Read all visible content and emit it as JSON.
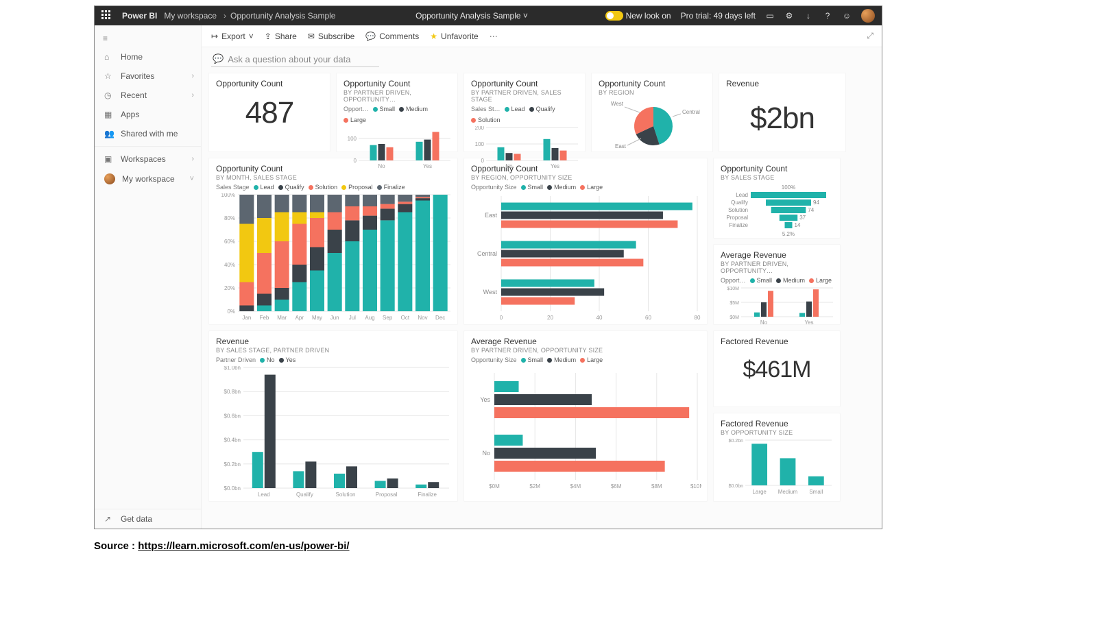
{
  "colors": {
    "teal": "#20b2aa",
    "dark": "#3a4249",
    "coral": "#f5725f",
    "yellow": "#f2c811",
    "grid": "#e6e6e6",
    "axis_text": "#999999"
  },
  "topbar": {
    "brand": "Power BI",
    "crumb1": "My workspace",
    "crumb2": "Opportunity Analysis Sample",
    "center_title": "Opportunity Analysis Sample",
    "new_look": "New look on",
    "trial": "Pro trial: 49 days left"
  },
  "nav": {
    "home": "Home",
    "favorites": "Favorites",
    "recent": "Recent",
    "apps": "Apps",
    "shared": "Shared with me",
    "workspaces": "Workspaces",
    "myws": "My workspace",
    "getdata": "Get data"
  },
  "actions": {
    "export": "Export",
    "share": "Share",
    "subscribe": "Subscribe",
    "comments": "Comments",
    "unfavorite": "Unfavorite"
  },
  "qna": {
    "placeholder": "Ask a question about your data"
  },
  "tile1": {
    "title": "Opportunity Count",
    "value": "487"
  },
  "tile2": {
    "title": "Opportunity Count",
    "subtitle": "BY PARTNER DRIVEN, OPPORTUNITY…",
    "legend_lead": "Opport…",
    "legend": [
      {
        "label": "Small",
        "color": "#20b2aa"
      },
      {
        "label": "Medium",
        "color": "#3a4249"
      },
      {
        "label": "Large",
        "color": "#f5725f"
      }
    ],
    "categories": [
      "No",
      "Yes"
    ],
    "yticks": [
      0,
      100
    ],
    "series": {
      "No": [
        70,
        75,
        60
      ],
      "Yes": [
        85,
        95,
        130
      ]
    }
  },
  "tile3": {
    "title": "Opportunity Count",
    "subtitle": "BY PARTNER DRIVEN, SALES STAGE",
    "legend_lead": "Sales St…",
    "legend": [
      {
        "label": "Lead",
        "color": "#20b2aa"
      },
      {
        "label": "Qualify",
        "color": "#3a4249"
      },
      {
        "label": "Solution",
        "color": "#f5725f"
      }
    ],
    "categories": [
      "No",
      "Yes"
    ],
    "yticks": [
      0,
      100,
      200
    ],
    "series": {
      "No": [
        80,
        45,
        40
      ],
      "Yes": [
        130,
        75,
        60
      ]
    }
  },
  "tile4": {
    "title": "Opportunity Count",
    "subtitle": "BY REGION",
    "labels": [
      "West",
      "Central",
      "East"
    ],
    "slices": [
      {
        "label": "East",
        "value": 45,
        "color": "#20b2aa"
      },
      {
        "label": "Central",
        "value": 23,
        "color": "#3a4249"
      },
      {
        "label": "West",
        "value": 32,
        "color": "#f5725f"
      }
    ]
  },
  "tile5": {
    "title": "Revenue",
    "value": "$2bn"
  },
  "tile6": {
    "title": "Opportunity Count",
    "subtitle": "BY MONTH, SALES STAGE",
    "legend_lead": "Sales Stage",
    "legend": [
      {
        "label": "Lead",
        "color": "#20b2aa"
      },
      {
        "label": "Qualify",
        "color": "#3a4249"
      },
      {
        "label": "Solution",
        "color": "#f5725f"
      },
      {
        "label": "Proposal",
        "color": "#f2c811"
      },
      {
        "label": "Finalize",
        "color": "#5c6670"
      }
    ],
    "months": [
      "Jan",
      "Feb",
      "Mar",
      "Apr",
      "May",
      "Jun",
      "Jul",
      "Aug",
      "Sep",
      "Oct",
      "Nov",
      "Dec"
    ],
    "yticks": [
      "0%",
      "20%",
      "40%",
      "60%",
      "80%",
      "100%"
    ],
    "stacks": [
      [
        0.0,
        0.05,
        0.2,
        0.5,
        0.25
      ],
      [
        0.05,
        0.1,
        0.35,
        0.3,
        0.2
      ],
      [
        0.1,
        0.1,
        0.4,
        0.25,
        0.15
      ],
      [
        0.25,
        0.15,
        0.35,
        0.1,
        0.15
      ],
      [
        0.35,
        0.2,
        0.25,
        0.05,
        0.15
      ],
      [
        0.5,
        0.2,
        0.15,
        0.0,
        0.15
      ],
      [
        0.6,
        0.18,
        0.12,
        0.0,
        0.1
      ],
      [
        0.7,
        0.12,
        0.08,
        0.0,
        0.1
      ],
      [
        0.78,
        0.1,
        0.04,
        0.0,
        0.08
      ],
      [
        0.85,
        0.07,
        0.02,
        0.0,
        0.06
      ],
      [
        0.95,
        0.02,
        0.01,
        0.0,
        0.02
      ],
      [
        1.0,
        0.0,
        0.0,
        0.0,
        0.0
      ]
    ]
  },
  "tile7": {
    "title": "Opportunity Count",
    "subtitle": "BY REGION, OPPORTUNITY SIZE",
    "legend_lead": "Opportunity Size",
    "legend": [
      {
        "label": "Small",
        "color": "#20b2aa"
      },
      {
        "label": "Medium",
        "color": "#3a4249"
      },
      {
        "label": "Large",
        "color": "#f5725f"
      }
    ],
    "categories": [
      "East",
      "Central",
      "West"
    ],
    "xticks": [
      0,
      20,
      40,
      60,
      80
    ],
    "series": {
      "East": [
        78,
        66,
        72
      ],
      "Central": [
        55,
        50,
        58
      ],
      "West": [
        38,
        42,
        30
      ]
    }
  },
  "tile8": {
    "title": "Opportunity Count",
    "subtitle": "BY SALES STAGE",
    "top_label": "100%",
    "rows": [
      {
        "label": "Lead",
        "pct": 100,
        "show": ""
      },
      {
        "label": "Qualify",
        "pct": 60,
        "show": "94"
      },
      {
        "label": "Solution",
        "pct": 46,
        "show": "74"
      },
      {
        "label": "Proposal",
        "pct": 24,
        "show": "37"
      },
      {
        "label": "Finalize",
        "pct": 10,
        "show": "14"
      }
    ],
    "bottom_label": "5.2%"
  },
  "tile9": {
    "title": "Average Revenue",
    "subtitle": "BY PARTNER DRIVEN, OPPORTUNITY…",
    "legend_lead": "Opport…",
    "legend": [
      {
        "label": "Small",
        "color": "#20b2aa"
      },
      {
        "label": "Medium",
        "color": "#3a4249"
      },
      {
        "label": "Large",
        "color": "#f5725f"
      }
    ],
    "categories": [
      "No",
      "Yes"
    ],
    "yticks": [
      "$0M",
      "$5M",
      "$10M"
    ],
    "series": {
      "No": [
        1.5,
        5,
        9
      ],
      "Yes": [
        1.3,
        5.3,
        9.5
      ]
    }
  },
  "tile10": {
    "title": "Revenue",
    "subtitle": "BY SALES STAGE, PARTNER DRIVEN",
    "legend_lead": "Partner Driven",
    "legend": [
      {
        "label": "No",
        "color": "#20b2aa"
      },
      {
        "label": "Yes",
        "color": "#3a4249"
      }
    ],
    "categories": [
      "Lead",
      "Qualify",
      "Solution",
      "Proposal",
      "Finalize"
    ],
    "yticks": [
      "$0.0bn",
      "$0.2bn",
      "$0.4bn",
      "$0.6bn",
      "$0.8bn",
      "$1.0bn"
    ],
    "series": {
      "Lead": [
        0.3,
        0.94
      ],
      "Qualify": [
        0.14,
        0.22
      ],
      "Solution": [
        0.12,
        0.18
      ],
      "Proposal": [
        0.06,
        0.08
      ],
      "Finalize": [
        0.03,
        0.05
      ]
    }
  },
  "tile11": {
    "title": "Average Revenue",
    "subtitle": "BY PARTNER DRIVEN, OPPORTUNITY SIZE",
    "legend_lead": "Opportunity Size",
    "legend": [
      {
        "label": "Small",
        "color": "#20b2aa"
      },
      {
        "label": "Medium",
        "color": "#3a4249"
      },
      {
        "label": "Large",
        "color": "#f5725f"
      }
    ],
    "categories": [
      "Yes",
      "No"
    ],
    "xticks": [
      "$0M",
      "$2M",
      "$4M",
      "$6M",
      "$8M",
      "$10M"
    ],
    "series": {
      "Yes": [
        1.2,
        4.8,
        9.6
      ],
      "No": [
        1.4,
        5.0,
        8.4
      ]
    }
  },
  "tile12": {
    "title": "Factored Revenue",
    "value": "$461M"
  },
  "tile13": {
    "title": "Factored Revenue",
    "subtitle": "BY OPPORTUNITY SIZE",
    "categories": [
      "Large",
      "Medium",
      "Small"
    ],
    "yticks": [
      "$0.0bn",
      "$0.2bn"
    ],
    "values": [
      0.23,
      0.15,
      0.05
    ],
    "color": "#20b2aa"
  },
  "source": {
    "label": "Source :",
    "url_text": "https://learn.microsoft.com/en-us/power-bi/"
  }
}
